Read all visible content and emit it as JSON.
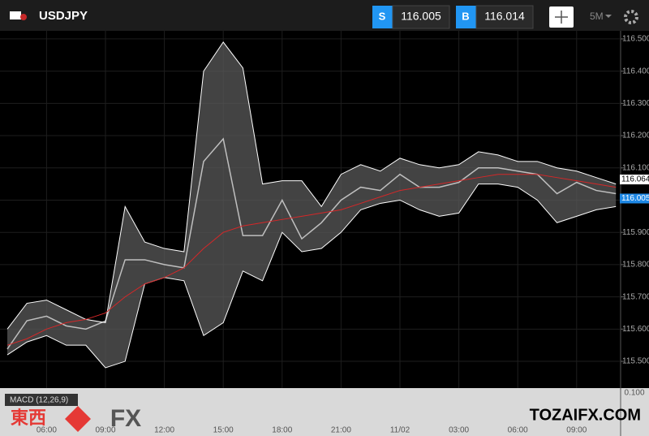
{
  "header": {
    "symbol": "USDJPY",
    "sell_label": "S",
    "sell_price": "116.005",
    "buy_label": "B",
    "buy_price": "116.014",
    "interval": "5M"
  },
  "macd": {
    "label": "MACD (12,26,9)",
    "tick": "0.100"
  },
  "watermark": {
    "left": "東西",
    "fx": "FX",
    "right": "TOZAIFX.COM"
  },
  "chart_data": {
    "type": "line",
    "categories": [
      null,
      null,
      "06:00",
      null,
      null,
      "09:00",
      null,
      null,
      "12:00",
      null,
      null,
      "15:00",
      null,
      null,
      "18:00",
      null,
      null,
      "21:00",
      null,
      null,
      "11/02",
      null,
      null,
      "03:00",
      null,
      null,
      "06:00",
      null,
      null,
      "09:00",
      null,
      null
    ],
    "series": [
      {
        "name": "Close",
        "color": "#bfbfbf",
        "values": [
          115.538,
          115.626,
          115.64,
          115.61,
          115.6,
          115.625,
          115.815,
          115.815,
          115.8,
          115.79,
          116.12,
          116.19,
          115.89,
          115.89,
          116.0,
          115.88,
          115.93,
          116.0,
          116.04,
          116.03,
          116.08,
          116.04,
          116.04,
          116.055,
          116.1,
          116.1,
          116.09,
          116.08,
          116.02,
          116.055,
          116.03,
          116.02
        ]
      },
      {
        "name": "Upper band",
        "color": "#ffffff",
        "values": [
          115.6,
          115.68,
          115.69,
          115.66,
          115.63,
          115.62,
          115.98,
          115.87,
          115.85,
          115.84,
          116.4,
          116.49,
          116.41,
          116.05,
          116.06,
          116.06,
          115.98,
          116.08,
          116.11,
          116.09,
          116.13,
          116.11,
          116.1,
          116.11,
          116.15,
          116.14,
          116.12,
          116.12,
          116.1,
          116.09,
          116.07,
          116.05
        ]
      },
      {
        "name": "Lower band",
        "color": "#ffffff",
        "values": [
          115.52,
          115.56,
          115.58,
          115.55,
          115.55,
          115.48,
          115.5,
          115.74,
          115.76,
          115.75,
          115.58,
          115.62,
          115.78,
          115.75,
          115.9,
          115.84,
          115.85,
          115.9,
          115.97,
          115.99,
          116.0,
          115.97,
          115.95,
          115.96,
          116.05,
          116.05,
          116.04,
          116.0,
          115.93,
          115.95,
          115.97,
          115.98
        ]
      },
      {
        "name": "Moving average",
        "color": "#d62728",
        "values": [
          115.55,
          115.57,
          115.6,
          115.62,
          115.63,
          115.65,
          115.7,
          115.74,
          115.76,
          115.79,
          115.85,
          115.9,
          115.92,
          115.93,
          115.94,
          115.95,
          115.96,
          115.97,
          115.99,
          116.01,
          116.03,
          116.04,
          116.05,
          116.06,
          116.07,
          116.08,
          116.08,
          116.08,
          116.07,
          116.06,
          116.05,
          116.04
        ]
      }
    ],
    "band_fill": "#5a5a5a",
    "ylim": [
      115.417,
      116.525
    ],
    "yticks": [
      {
        "value": 115.5,
        "label": "115.500"
      },
      {
        "value": 115.6,
        "label": "115.600"
      },
      {
        "value": 115.7,
        "label": "115.700"
      },
      {
        "value": 115.8,
        "label": "115.800"
      },
      {
        "value": 115.9,
        "label": "115.900"
      },
      {
        "value": 116.0,
        "label": "116.000"
      },
      {
        "value": 116.1,
        "label": "116.100"
      },
      {
        "value": 116.2,
        "label": "116.200"
      },
      {
        "value": 116.3,
        "label": "116.300"
      },
      {
        "value": 116.4,
        "label": "116.400"
      },
      {
        "value": 116.5,
        "label": "116.500"
      }
    ],
    "markers": [
      {
        "value": 116.064,
        "label": "116.064",
        "color": "#ffffff"
      },
      {
        "value": 116.005,
        "label": "116.005",
        "color": "#1e88e5"
      }
    ]
  }
}
